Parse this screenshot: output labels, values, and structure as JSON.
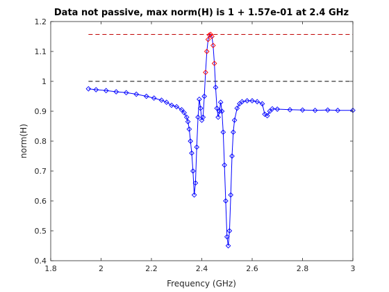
{
  "chart_data": {
    "type": "line",
    "title": "Data not passive, max norm(H) is 1 + 1.57e-01 at 2.4 GHz",
    "xlabel": "Frequency (GHz)",
    "ylabel": "norm(H)",
    "xlim": [
      1.8,
      3.0
    ],
    "ylim": [
      0.4,
      1.2
    ],
    "xticks": [
      1.8,
      2.0,
      2.2,
      2.4,
      2.6,
      2.8,
      3.0
    ],
    "xtick_labels": [
      "1.8",
      "2",
      "2.2",
      "2.4",
      "2.6",
      "2.8",
      "3"
    ],
    "yticks": [
      0.4,
      0.5,
      0.6,
      0.7,
      0.8,
      0.9,
      1.0,
      1.1,
      1.2
    ],
    "ytick_labels": [
      "0.4",
      "0.5",
      "0.6",
      "0.7",
      "0.8",
      "0.9",
      "1",
      "1.1",
      "1.2"
    ],
    "grid": false,
    "reference_lines": [
      {
        "y": 1.0,
        "color": "#000000",
        "style": "dashed"
      },
      {
        "y": 1.157,
        "color": "#c00000",
        "style": "dashed"
      }
    ],
    "series": [
      {
        "color": "#0000ff",
        "violation_color": "#ff0000",
        "marker": "diamond",
        "x": [
          1.95,
          1.98,
          2.02,
          2.06,
          2.1,
          2.14,
          2.18,
          2.21,
          2.24,
          2.26,
          2.28,
          2.3,
          2.32,
          2.33,
          2.34,
          2.345,
          2.35,
          2.355,
          2.36,
          2.365,
          2.37,
          2.375,
          2.38,
          2.385,
          2.39,
          2.395,
          2.4,
          2.405,
          2.41,
          2.415,
          2.42,
          2.425,
          2.43,
          2.435,
          2.44,
          2.445,
          2.45,
          2.455,
          2.46,
          2.465,
          2.47,
          2.475,
          2.48,
          2.485,
          2.49,
          2.495,
          2.5,
          2.505,
          2.51,
          2.515,
          2.52,
          2.525,
          2.53,
          2.54,
          2.55,
          2.56,
          2.58,
          2.6,
          2.62,
          2.64,
          2.65,
          2.66,
          2.67,
          2.68,
          2.7,
          2.75,
          2.8,
          2.85,
          2.9,
          2.94,
          3.0
        ],
        "y": [
          0.975,
          0.972,
          0.969,
          0.965,
          0.962,
          0.957,
          0.95,
          0.944,
          0.937,
          0.93,
          0.92,
          0.915,
          0.905,
          0.895,
          0.88,
          0.865,
          0.84,
          0.8,
          0.76,
          0.7,
          0.62,
          0.66,
          0.78,
          0.88,
          0.94,
          0.91,
          0.87,
          0.88,
          0.95,
          1.03,
          1.1,
          1.14,
          1.155,
          1.157,
          1.15,
          1.12,
          1.06,
          0.98,
          0.91,
          0.88,
          0.9,
          0.93,
          0.9,
          0.83,
          0.72,
          0.6,
          0.48,
          0.45,
          0.5,
          0.62,
          0.75,
          0.83,
          0.87,
          0.91,
          0.925,
          0.932,
          0.935,
          0.935,
          0.932,
          0.925,
          0.89,
          0.885,
          0.9,
          0.908,
          0.907,
          0.905,
          0.904,
          0.903,
          0.904,
          0.903,
          0.903
        ]
      }
    ]
  }
}
